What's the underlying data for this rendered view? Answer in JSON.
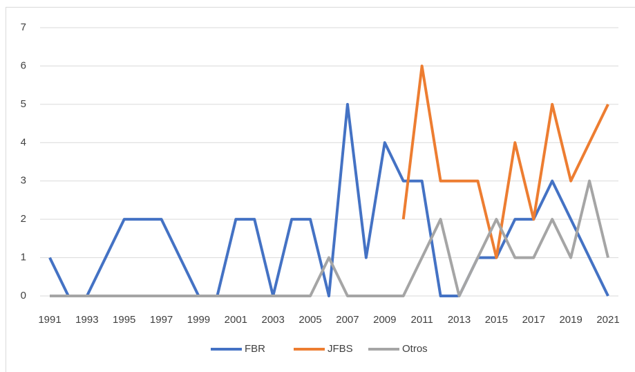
{
  "chart_data": {
    "type": "line",
    "categories": [
      "1991",
      null,
      "1993",
      null,
      "1995",
      null,
      "1997",
      null,
      "1999",
      null,
      "2001",
      null,
      "2003",
      null,
      "2005",
      null,
      "2007",
      null,
      "2009",
      null,
      "2011",
      null,
      "2013",
      null,
      "2015",
      null,
      "2017",
      null,
      "2019",
      null,
      "2021"
    ],
    "series": [
      {
        "name": "FBR",
        "color": "#4472c4",
        "values": [
          1,
          0,
          0,
          1,
          2,
          2,
          2,
          1,
          0,
          0,
          2,
          2,
          0,
          2,
          2,
          0,
          5,
          1,
          4,
          3,
          3,
          0,
          0,
          1,
          1,
          2,
          2,
          3,
          2,
          1,
          0
        ]
      },
      {
        "name": "JFBS",
        "color": "#ed7d31",
        "values": [
          null,
          null,
          null,
          null,
          null,
          null,
          null,
          null,
          null,
          null,
          null,
          null,
          null,
          null,
          null,
          null,
          null,
          null,
          null,
          2,
          6,
          3,
          3,
          3,
          1,
          4,
          2,
          5,
          3,
          4,
          5
        ]
      },
      {
        "name": "Otros",
        "color": "#a5a5a5",
        "values": [
          0,
          0,
          0,
          0,
          0,
          0,
          0,
          0,
          0,
          0,
          0,
          0,
          0,
          0,
          0,
          1,
          0,
          0,
          0,
          0,
          1,
          2,
          0,
          1,
          2,
          1,
          1,
          2,
          1,
          3,
          1
        ]
      }
    ],
    "ylim": [
      0,
      7
    ],
    "yticks": [
      0,
      1,
      2,
      3,
      4,
      5,
      6,
      7
    ],
    "grid": true,
    "legend": "bottom"
  }
}
